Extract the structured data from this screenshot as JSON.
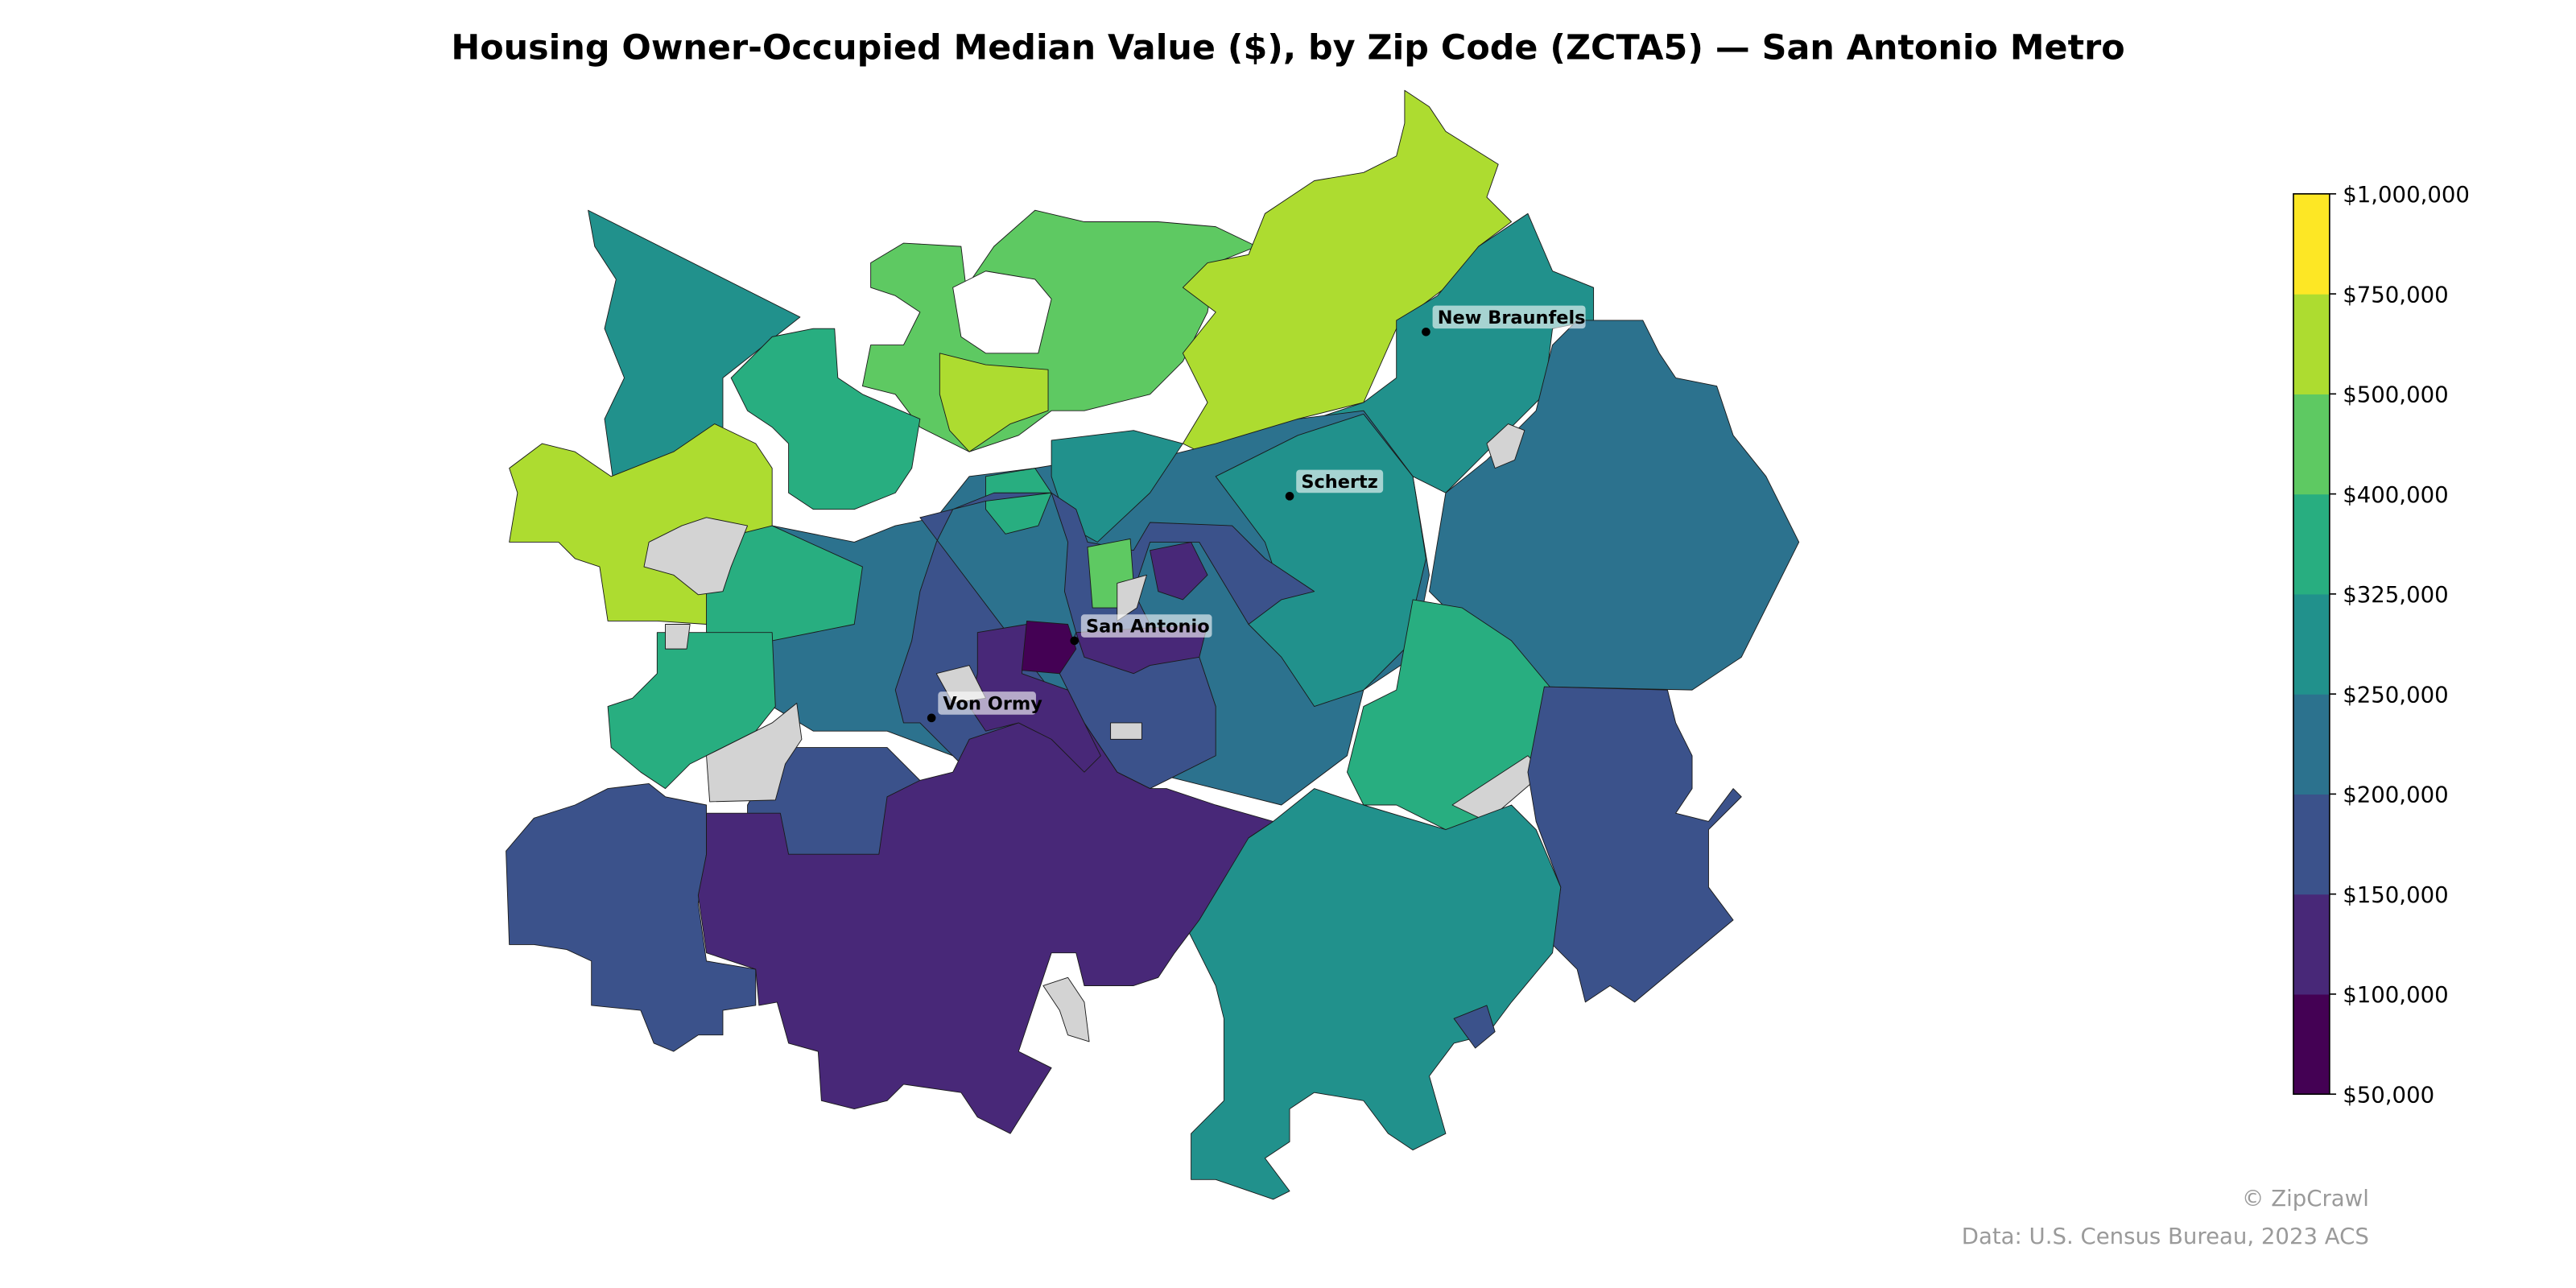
{
  "title": "Housing Owner-Occupied Median Value ($), by Zip Code (ZCTA5) — San Antonio Metro",
  "colorbar": {
    "ticks": [
      "$50,000",
      "$100,000",
      "$150,000",
      "$200,000",
      "$250,000",
      "$325,000",
      "$400,000",
      "$500,000",
      "$750,000",
      "$1,000,000"
    ],
    "bin_colors": [
      "#440154",
      "#482878",
      "#3b528b",
      "#2c728e",
      "#21918c",
      "#28ae80",
      "#5ec962",
      "#addc30",
      "#fde725"
    ],
    "no_data_color": "#d3d3d3"
  },
  "cities": [
    {
      "name": "New Braunfels"
    },
    {
      "name": "Schertz"
    },
    {
      "name": "San Antonio"
    },
    {
      "name": "Von Ormy"
    }
  ],
  "footer": {
    "credit": "© ZipCrawl",
    "source": "Data: U.S. Census Bureau, 2023 ACS"
  }
}
